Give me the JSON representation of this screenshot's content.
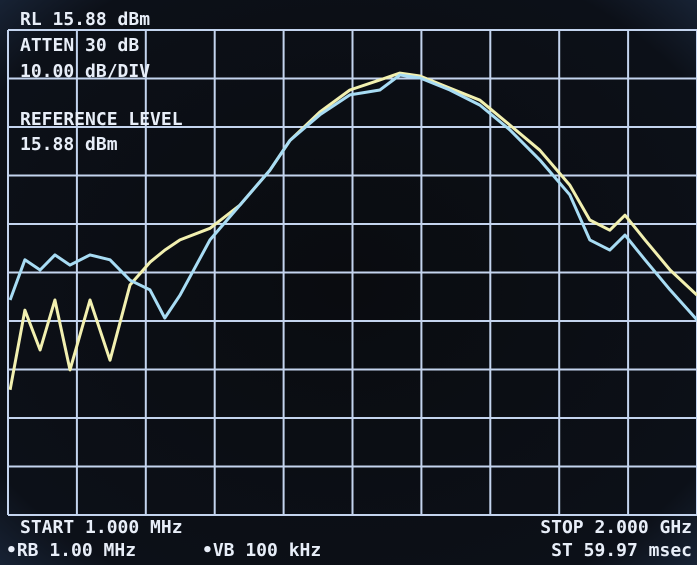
{
  "chart_data": {
    "type": "line",
    "annotations": [
      "RL 15.88 dBm",
      "ATTEN 30 dB",
      "10.00 dB/DIV",
      "REFERENCE LEVEL",
      "15.88 dBm",
      "START 1.000 MHz",
      "STOP 2.000 GHz",
      "•RB 1.00 MHz",
      "•VB 100 kHz",
      "ST 59.97 msec"
    ],
    "x": [
      7,
      50,
      94,
      137,
      181,
      239,
      297,
      355,
      413,
      456,
      500,
      587,
      674,
      761,
      819,
      906,
      993,
      1080,
      1138,
      1196,
      1283,
      1370,
      1457,
      1544,
      1631,
      1689,
      1747,
      1791,
      1849,
      1922,
      2000
    ],
    "xlim": [
      1,
      2000
    ],
    "ylim": [
      -84.12,
      15.88
    ],
    "grid": true,
    "series": [
      {
        "color": "#f2f0b0",
        "values": [
          -58.3,
          -41.9,
          -50.1,
          -39.8,
          -54.2,
          -39.8,
          -52.2,
          -36.7,
          -32,
          -29.5,
          -27.4,
          -25,
          -20.2,
          -13,
          -6.9,
          -1.0,
          3.5,
          5.6,
          7.0,
          6.4,
          3.9,
          1.4,
          -3.7,
          -8.9,
          -16.1,
          -23.3,
          -25.4,
          -22.3,
          -27.4,
          -33.6,
          -38.8
        ]
      },
      {
        "color": "#a8dcf4",
        "values": [
          -39.8,
          -31.5,
          -33.6,
          -30.5,
          -32.6,
          -30.5,
          -31.5,
          -35.7,
          -37.7,
          -43.5,
          -38.8,
          -27.4,
          -20.2,
          -13,
          -6.9,
          -1.6,
          2.5,
          3.5,
          6.6,
          6.0,
          3.5,
          0.4,
          -4.7,
          -10.9,
          -18.1,
          -27.4,
          -29.5,
          -26.4,
          -31.5,
          -37.7,
          -43.9
        ]
      }
    ]
  }
}
